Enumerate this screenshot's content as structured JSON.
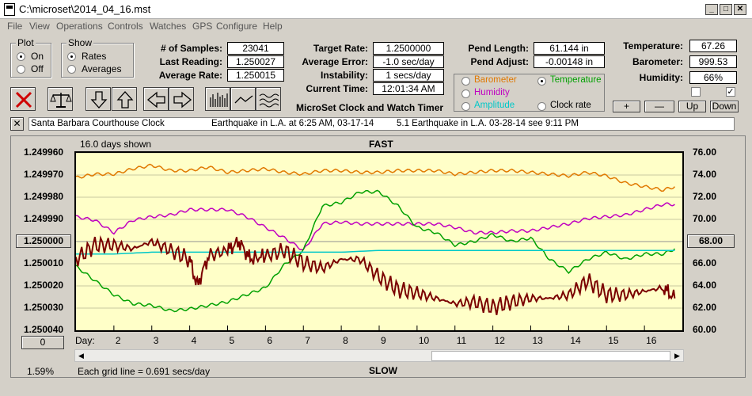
{
  "window": {
    "title": "C:\\microset\\2014_04_16.mst"
  },
  "menu": [
    "File",
    "View",
    "Operations",
    "Controls",
    "Watches",
    "GPS",
    "Configure",
    "Help"
  ],
  "plot_group": {
    "title": "Plot",
    "options": [
      "On",
      "Off"
    ],
    "selected": "On"
  },
  "show_group": {
    "title": "Show",
    "options": [
      "Rates",
      "Averages"
    ],
    "selected": "Rates"
  },
  "stats": {
    "samples_label": "# of Samples:",
    "samples": "23041",
    "last_label": "Last Reading:",
    "last": "1.250027",
    "avg_label": "Average Rate:",
    "avg": "1.250015",
    "target_label": "Target Rate:",
    "target": "1.2500000",
    "avgerr_label": "Average Error:",
    "avgerr": "-1.0 sec/day",
    "instab_label": "Instability:",
    "instab": "1 secs/day",
    "time_label": "Current Time:",
    "time": "12:01:34 AM",
    "pendlen_label": "Pend Length:",
    "pendlen": "61.144 in",
    "pendadj_label": "Pend Adjust:",
    "pendadj": "-0.00148 in",
    "temp_label": "Temperature:",
    "temp": "67.26",
    "baro_label": "Barometer:",
    "baro": "999.53",
    "hum_label": "Humidity:",
    "hum": "66%"
  },
  "app_caption": "MicroSet Clock and Watch Timer",
  "sensors": {
    "items": [
      {
        "label": "Barometer",
        "color": "#e07800",
        "selected": false
      },
      {
        "label": "Temperature",
        "color": "#00a000",
        "selected": true
      },
      {
        "label": "Humidity",
        "color": "#c000c0",
        "selected": false
      },
      {
        "label": "Clock rate",
        "color": "#000000",
        "selected": false
      },
      {
        "label": "Amplitude",
        "color": "#00c8c8",
        "selected": false
      }
    ]
  },
  "adjust_buttons": [
    "+",
    "—",
    "Up",
    "Down"
  ],
  "toolbar_icons": [
    "delete-icon",
    "balance-scale-icon",
    "down-arrow-icon",
    "up-arrow-icon",
    "left-arrow-icon",
    "right-arrow-icon",
    "bar-graph-icon",
    "line-graph-icon",
    "wave-graph-icon"
  ],
  "notes": {
    "close": "✕",
    "text1": "Santa Barbara Courthouse Clock",
    "text2": "Earthquake in L.A. at 6:25 AM, 03-17-14",
    "text3": "5.1 Earthquake in L.A. 03-28-14  see 9:11 PM"
  },
  "chart": {
    "days_shown": "16.0 days shown",
    "top_label": "FAST",
    "bottom_label": "SLOW",
    "left_value_btn": "1.250000",
    "right_value_btn": "68.00",
    "zero_btn": "0",
    "day_label": "Day:",
    "percent": "1.59%",
    "grid_note": "Each grid line = 0.691 secs/day"
  },
  "chart_data": {
    "type": "line",
    "y_left_ticks": [
      "1.249960",
      "1.249970",
      "1.249980",
      "1.249990",
      "1.250000",
      "1.250010",
      "1.250020",
      "1.250030",
      "1.250040"
    ],
    "y_right_ticks": [
      "76.00",
      "74.00",
      "72.00",
      "70.00",
      "68.00",
      "66.00",
      "64.00",
      "62.00",
      "60.00"
    ],
    "x_ticks": [
      "2",
      "3",
      "4",
      "5",
      "6",
      "7",
      "8",
      "9",
      "10",
      "11",
      "12",
      "13",
      "14",
      "15",
      "16"
    ],
    "xlim": [
      1.0,
      17.0
    ],
    "series": [
      {
        "name": "Barometer",
        "color": "#e07800",
        "values": [
          [
            1.0,
            0.14
          ],
          [
            1.5,
            0.12
          ],
          [
            2,
            0.12
          ],
          [
            2.5,
            0.09
          ],
          [
            3,
            0.07
          ],
          [
            3.5,
            0.1
          ],
          [
            4,
            0.1
          ],
          [
            4.5,
            0.08
          ],
          [
            5,
            0.11
          ],
          [
            5.5,
            0.1
          ],
          [
            6,
            0.09
          ],
          [
            6.5,
            0.11
          ],
          [
            7,
            0.12
          ],
          [
            7.5,
            0.1
          ],
          [
            8,
            0.1
          ],
          [
            8.5,
            0.11
          ],
          [
            9,
            0.11
          ],
          [
            9.5,
            0.1
          ],
          [
            10,
            0.1
          ],
          [
            10.5,
            0.1
          ],
          [
            11,
            0.12
          ],
          [
            11.5,
            0.11
          ],
          [
            12,
            0.1
          ],
          [
            12.5,
            0.1
          ],
          [
            13,
            0.11
          ],
          [
            13.5,
            0.12
          ],
          [
            14,
            0.13
          ],
          [
            14.5,
            0.11
          ],
          [
            15,
            0.13
          ],
          [
            15.5,
            0.17
          ],
          [
            16,
            0.19
          ],
          [
            16.5,
            0.21
          ],
          [
            16.8,
            0.19
          ]
        ]
      },
      {
        "name": "Humidity",
        "color": "#c000c0",
        "values": [
          [
            1.0,
            0.36
          ],
          [
            1.5,
            0.38
          ],
          [
            2,
            0.45
          ],
          [
            2.5,
            0.38
          ],
          [
            3,
            0.36
          ],
          [
            3.5,
            0.35
          ],
          [
            4,
            0.32
          ],
          [
            4.5,
            0.32
          ],
          [
            5,
            0.32
          ],
          [
            5.5,
            0.36
          ],
          [
            6,
            0.42
          ],
          [
            6.5,
            0.48
          ],
          [
            7,
            0.55
          ],
          [
            7.5,
            0.4
          ],
          [
            8,
            0.39
          ],
          [
            8.5,
            0.4
          ],
          [
            9,
            0.4
          ],
          [
            9.5,
            0.4
          ],
          [
            10,
            0.4
          ],
          [
            10.5,
            0.4
          ],
          [
            11,
            0.42
          ],
          [
            11.5,
            0.45
          ],
          [
            12,
            0.45
          ],
          [
            12.5,
            0.44
          ],
          [
            13,
            0.44
          ],
          [
            13.5,
            0.42
          ],
          [
            14,
            0.4
          ],
          [
            14.5,
            0.37
          ],
          [
            15,
            0.36
          ],
          [
            15.5,
            0.35
          ],
          [
            16,
            0.32
          ],
          [
            16.5,
            0.29
          ],
          [
            16.8,
            0.29
          ]
        ]
      },
      {
        "name": "Temperature",
        "color": "#00a000",
        "values": [
          [
            1.0,
            0.64
          ],
          [
            1.5,
            0.72
          ],
          [
            2,
            0.8
          ],
          [
            2.5,
            0.85
          ],
          [
            3,
            0.86
          ],
          [
            3.5,
            0.89
          ],
          [
            4,
            0.88
          ],
          [
            4.5,
            0.86
          ],
          [
            5,
            0.84
          ],
          [
            5.5,
            0.8
          ],
          [
            6,
            0.76
          ],
          [
            6.5,
            0.63
          ],
          [
            7,
            0.55
          ],
          [
            7.5,
            0.3
          ],
          [
            8,
            0.28
          ],
          [
            8.5,
            0.22
          ],
          [
            9,
            0.22
          ],
          [
            9.5,
            0.3
          ],
          [
            10,
            0.42
          ],
          [
            10.5,
            0.45
          ],
          [
            11,
            0.52
          ],
          [
            11.5,
            0.5
          ],
          [
            12,
            0.46
          ],
          [
            12.5,
            0.5
          ],
          [
            13,
            0.48
          ],
          [
            13.5,
            0.6
          ],
          [
            14,
            0.67
          ],
          [
            14.5,
            0.6
          ],
          [
            15,
            0.56
          ],
          [
            15.5,
            0.6
          ],
          [
            16,
            0.57
          ],
          [
            16.5,
            0.57
          ],
          [
            16.8,
            0.54
          ]
        ]
      },
      {
        "name": "Amplitude",
        "color": "#00c8c8",
        "values": [
          [
            1.0,
            0.57
          ],
          [
            2,
            0.57
          ],
          [
            3,
            0.56
          ],
          [
            4,
            0.56
          ],
          [
            5,
            0.56
          ],
          [
            6,
            0.56
          ],
          [
            7,
            0.56
          ],
          [
            8,
            0.56
          ],
          [
            9,
            0.55
          ],
          [
            10,
            0.55
          ],
          [
            11,
            0.55
          ],
          [
            12,
            0.55
          ],
          [
            13,
            0.55
          ],
          [
            14,
            0.55
          ],
          [
            15,
            0.55
          ],
          [
            16,
            0.55
          ],
          [
            16.8,
            0.55
          ]
        ]
      },
      {
        "name": "Clock rate",
        "color": "#7a0000",
        "values": [
          [
            1.0,
            0.6
          ],
          [
            1.5,
            0.52
          ],
          [
            2,
            0.52
          ],
          [
            2.5,
            0.54
          ],
          [
            3,
            0.5
          ],
          [
            3.5,
            0.55
          ],
          [
            4,
            0.6
          ],
          [
            4.2,
            0.75
          ],
          [
            4.5,
            0.58
          ],
          [
            5,
            0.55
          ],
          [
            5.3,
            0.5
          ],
          [
            5.6,
            0.6
          ],
          [
            6,
            0.58
          ],
          [
            6.5,
            0.55
          ],
          [
            7,
            0.62
          ],
          [
            7.5,
            0.65
          ],
          [
            8,
            0.6
          ],
          [
            8.5,
            0.6
          ],
          [
            9,
            0.7
          ],
          [
            9.5,
            0.77
          ],
          [
            10,
            0.79
          ],
          [
            10.5,
            0.82
          ],
          [
            11,
            0.85
          ],
          [
            11.5,
            0.84
          ],
          [
            12,
            0.87
          ],
          [
            12.5,
            0.84
          ],
          [
            13,
            0.82
          ],
          [
            13.5,
            0.82
          ],
          [
            14,
            0.8
          ],
          [
            14.5,
            0.72
          ],
          [
            15,
            0.8
          ],
          [
            15.5,
            0.8
          ],
          [
            16,
            0.78
          ],
          [
            16.5,
            0.76
          ],
          [
            16.8,
            0.82
          ]
        ]
      }
    ]
  }
}
